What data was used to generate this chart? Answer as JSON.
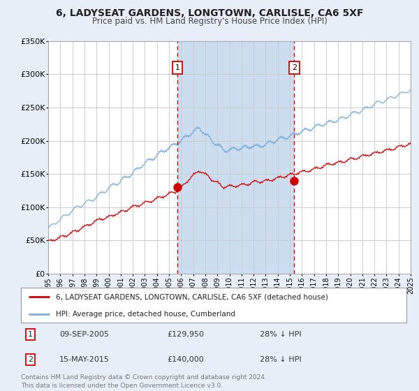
{
  "title": "6, LADYSEAT GARDENS, LONGTOWN, CARLISLE, CA6 5XF",
  "subtitle": "Price paid vs. HM Land Registry's House Price Index (HPI)",
  "legend_line1": "6, LADYSEAT GARDENS, LONGTOWN, CARLISLE, CA6 5XF (detached house)",
  "legend_line2": "HPI: Average price, detached house, Cumberland",
  "annotation1_date": "09-SEP-2005",
  "annotation1_price": "£129,950",
  "annotation1_hpi": "28% ↓ HPI",
  "annotation2_date": "15-MAY-2015",
  "annotation2_price": "£140,000",
  "annotation2_hpi": "28% ↓ HPI",
  "sale1_year": 2005.69,
  "sale1_price": 129950,
  "sale2_year": 2015.37,
  "sale2_price": 140000,
  "fig_bg_color": "#e8eef8",
  "plot_bg_color": "#ffffff",
  "red_line_color": "#cc0000",
  "blue_line_color": "#7aacdc",
  "grid_color": "#cccccc",
  "vline_color": "#cc0000",
  "shade_color": "#ccddf0",
  "ylim_max": 350000,
  "xlim_start": 1995,
  "xlim_end": 2025,
  "footer": "Contains HM Land Registry data © Crown copyright and database right 2024.\nThis data is licensed under the Open Government Licence v3.0."
}
